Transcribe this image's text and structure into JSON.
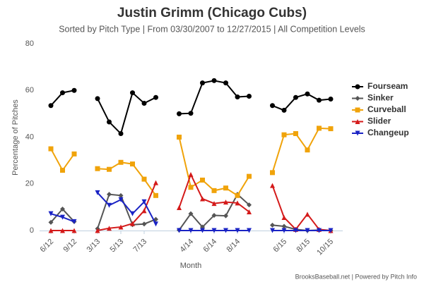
{
  "chart_data": {
    "type": "line",
    "title": "Justin Grimm (Chicago Cubs)",
    "subtitle": "Sorted by Pitch Type | From 03/30/2007 to 12/27/2015 | All Competition Levels",
    "x_label": "Month",
    "y_label": "Percentage of Pitches",
    "credit": "BrooksBaseball.net | Powered by Pitch Info",
    "categories": [
      "6/12",
      null,
      "9/12",
      null,
      "3/13",
      null,
      "5/13",
      null,
      "7/13",
      null,
      null,
      null,
      "4/14",
      null,
      "6/14",
      null,
      "8/14",
      null,
      null,
      null,
      "6/15",
      null,
      "8/15",
      null,
      "10/15"
    ],
    "ylim": [
      0,
      80
    ],
    "yticks": [
      0,
      20,
      40,
      60,
      80
    ],
    "grid": false,
    "legend": "right",
    "series": [
      {
        "name": "Fourseam",
        "color": "#000000",
        "marker": "circle",
        "values": [
          53.5,
          59,
          60,
          null,
          56.5,
          46.5,
          41.5,
          59,
          54.5,
          57,
          null,
          50,
          50.2,
          63.2,
          64.2,
          63.2,
          57.2,
          57.5,
          null,
          53.5,
          51.5,
          57,
          58.5,
          55.8,
          56.3
        ]
      },
      {
        "name": "Sinker",
        "color": "#555555",
        "marker": "diamond",
        "values": [
          3.5,
          9.2,
          3.8,
          null,
          0.8,
          15.5,
          15,
          2.5,
          2.8,
          4.8,
          null,
          0.2,
          7.2,
          1.5,
          6.5,
          6.3,
          15.5,
          11,
          null,
          2.3,
          1.8,
          0.5,
          0,
          0.2,
          0
        ]
      },
      {
        "name": "Curveball",
        "color": "#f0a30a",
        "marker": "square",
        "values": [
          35,
          25.8,
          32.8,
          null,
          26.5,
          26.2,
          29.2,
          28.5,
          22,
          15,
          null,
          40,
          18.5,
          21.6,
          17.1,
          18.2,
          15,
          23.2,
          null,
          24.8,
          41,
          41.5,
          34.5,
          43.8,
          43.6
        ]
      },
      {
        "name": "Slider",
        "color": "#d41a1a",
        "marker": "triangle-up",
        "values": [
          0,
          0,
          0,
          null,
          0,
          1,
          1.5,
          3,
          8.5,
          20.5,
          null,
          9.8,
          24,
          13.6,
          11.6,
          12.2,
          11.8,
          8,
          null,
          19.3,
          5.6,
          0.5,
          7,
          0.5,
          0
        ]
      },
      {
        "name": "Changeup",
        "color": "#1a23c4",
        "marker": "triangle-down",
        "values": [
          7.2,
          5.7,
          3.8,
          null,
          16.2,
          10.8,
          13.2,
          7.2,
          12.3,
          2.8,
          null,
          0,
          0,
          0,
          0,
          0,
          0,
          0,
          null,
          0,
          0,
          0,
          0,
          0,
          0
        ]
      }
    ]
  }
}
